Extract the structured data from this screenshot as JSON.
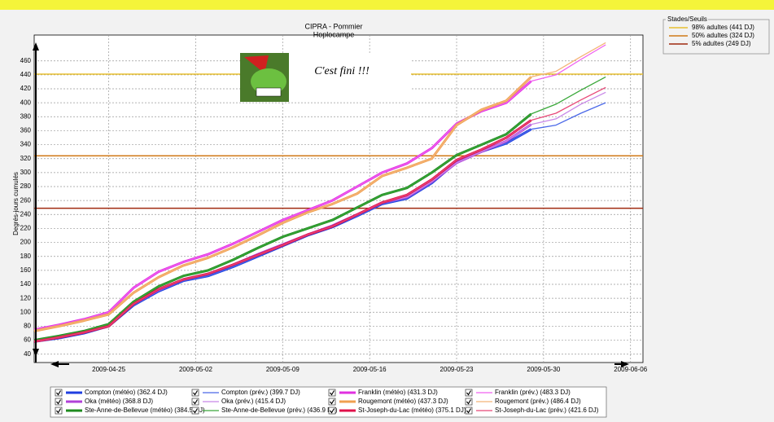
{
  "chart_data": {
    "type": "line",
    "title": "CIPRA - Pommier",
    "subtitle": "Hoplocampe",
    "annotation": "C'est fini !!!",
    "ylabel": "Degrés-jours cumulés",
    "x": [
      "2009-04-19",
      "2009-04-21",
      "2009-04-23",
      "2009-04-25",
      "2009-04-27",
      "2009-04-29",
      "2009-05-01",
      "2009-05-03",
      "2009-05-05",
      "2009-05-07",
      "2009-05-09",
      "2009-05-11",
      "2009-05-13",
      "2009-05-15",
      "2009-05-17",
      "2009-05-19",
      "2009-05-21",
      "2009-05-23",
      "2009-05-25",
      "2009-05-27",
      "2009-05-29",
      "2009-05-31",
      "2009-06-02",
      "2009-06-04"
    ],
    "xlim": [
      "2009-04-19",
      "2009-06-07"
    ],
    "xticks": [
      "2009-04-25",
      "2009-05-02",
      "2009-05-09",
      "2009-05-16",
      "2009-05-23",
      "2009-05-30",
      "2009-06-06"
    ],
    "ylim": [
      28,
      497
    ],
    "yticks": [
      40,
      60,
      80,
      100,
      120,
      140,
      160,
      180,
      200,
      220,
      240,
      260,
      280,
      300,
      320,
      340,
      360,
      380,
      400,
      420,
      440,
      460
    ],
    "grid": true,
    "legend_title": "Stades/Seuils",
    "thresholds": [
      {
        "name": "98% adultes (441 DJ)",
        "color": "#e8c030",
        "value": 441
      },
      {
        "name": "50% adultes (324 DJ)",
        "color": "#d07a18",
        "value": 324
      },
      {
        "name": "5% adultes (249 DJ)",
        "color": "#a02a10",
        "value": 249
      }
    ],
    "series": [
      {
        "name": "Compton (météo) (362.4 DJ)",
        "color": "#1f3fe0",
        "width": 3,
        "values": [
          58,
          63,
          70,
          80,
          110,
          130,
          145,
          152,
          165,
          180,
          195,
          210,
          222,
          238,
          255,
          263,
          285,
          315,
          330,
          342,
          362,
          null,
          null,
          null
        ]
      },
      {
        "name": "Compton (prév.) (399.7 DJ)",
        "color": "#4a68e8",
        "width": 1.3,
        "values": [
          58,
          63,
          70,
          80,
          110,
          130,
          145,
          152,
          165,
          180,
          195,
          210,
          222,
          238,
          255,
          263,
          285,
          315,
          330,
          342,
          362,
          368,
          385,
          400
        ]
      },
      {
        "name": "Franklin (météo) (431.3 DJ)",
        "color": "#e030e0",
        "width": 3,
        "values": [
          75,
          82,
          90,
          100,
          135,
          158,
          172,
          183,
          198,
          215,
          232,
          246,
          260,
          280,
          300,
          313,
          335,
          370,
          388,
          400,
          431,
          null,
          null,
          null
        ]
      },
      {
        "name": "Franklin (prév.) (483.3 DJ)",
        "color": "#f060f0",
        "width": 1.3,
        "values": [
          75,
          82,
          90,
          100,
          135,
          158,
          172,
          183,
          198,
          215,
          232,
          246,
          260,
          280,
          300,
          313,
          335,
          370,
          388,
          400,
          431,
          440,
          462,
          483
        ]
      },
      {
        "name": "Oka (météo) (368.8 DJ)",
        "color": "#b040d8",
        "width": 3,
        "values": [
          58,
          64,
          71,
          81,
          112,
          132,
          147,
          155,
          168,
          183,
          197,
          211,
          224,
          240,
          257,
          265,
          287,
          314,
          330,
          345,
          369,
          null,
          null,
          null
        ]
      },
      {
        "name": "Oka (prév.) (415.4 DJ)",
        "color": "#c888e8",
        "width": 1.3,
        "values": [
          58,
          64,
          71,
          81,
          112,
          132,
          147,
          155,
          168,
          183,
          197,
          211,
          224,
          240,
          257,
          265,
          287,
          314,
          330,
          345,
          369,
          377,
          398,
          415
        ]
      },
      {
        "name": "Rougemont (météo) (437.3 DJ)",
        "color": "#f0a050",
        "width": 3,
        "values": [
          73,
          80,
          88,
          97,
          128,
          150,
          167,
          178,
          193,
          210,
          228,
          243,
          255,
          270,
          295,
          307,
          320,
          368,
          390,
          403,
          437,
          null,
          null,
          null
        ]
      },
      {
        "name": "Rougemont (prév.) (486.4 DJ)",
        "color": "#f4b478",
        "width": 1.3,
        "values": [
          73,
          80,
          88,
          97,
          128,
          150,
          167,
          178,
          193,
          210,
          228,
          243,
          255,
          270,
          295,
          307,
          320,
          368,
          390,
          403,
          437,
          445,
          466,
          486
        ]
      },
      {
        "name": "Ste-Anne-de-Bellevue (météo) (384.5 DJ)",
        "color": "#1e8a1e",
        "width": 3,
        "values": [
          60,
          66,
          73,
          83,
          115,
          137,
          152,
          160,
          175,
          192,
          208,
          220,
          232,
          250,
          268,
          278,
          300,
          325,
          340,
          355,
          384,
          null,
          null,
          null
        ]
      },
      {
        "name": "Ste-Anne-de-Bellevue (prév.) (436.9 DJ)",
        "color": "#3aa83a",
        "width": 1.3,
        "values": [
          60,
          66,
          73,
          83,
          115,
          137,
          152,
          160,
          175,
          192,
          208,
          220,
          232,
          250,
          268,
          278,
          300,
          325,
          340,
          355,
          384,
          398,
          418,
          437
        ]
      },
      {
        "name": "St-Joseph-du-Lac (météo) (375.1 DJ)",
        "color": "#e0104a",
        "width": 3,
        "values": [
          58,
          64,
          71,
          80,
          112,
          133,
          147,
          155,
          168,
          182,
          196,
          211,
          223,
          240,
          257,
          268,
          290,
          318,
          333,
          350,
          375,
          null,
          null,
          null
        ]
      },
      {
        "name": "St-Joseph-du-Lac (prév.) (421.6 DJ)",
        "color": "#e84878",
        "width": 1.3,
        "values": [
          58,
          64,
          71,
          80,
          112,
          133,
          147,
          155,
          168,
          182,
          196,
          211,
          223,
          240,
          257,
          268,
          290,
          318,
          333,
          350,
          375,
          385,
          404,
          422
        ]
      }
    ]
  }
}
